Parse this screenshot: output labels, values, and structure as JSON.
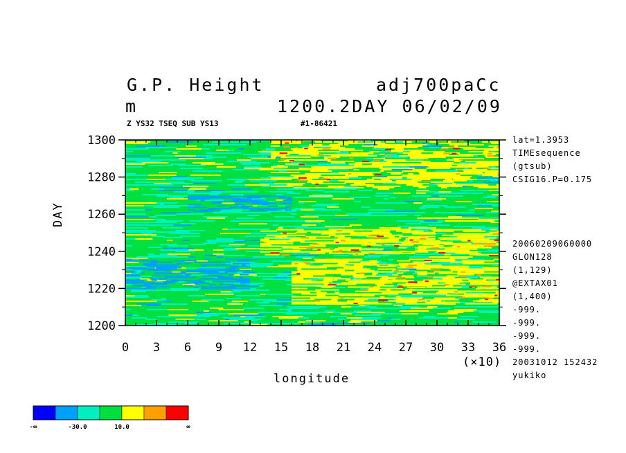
{
  "header": {
    "title_left": "G.P. Height",
    "title_right": "adj700paCc",
    "unit": "m",
    "subtitle_right": "1200.2DAY 06/02/09",
    "info_left": "Z YS32 TSEQ SUB YS13",
    "info_right": "#1-86421"
  },
  "side_info": {
    "top": [
      "lat=1.3953",
      "TIMEsequence",
      "(gtsub)",
      "CSIG16.P=0.175"
    ],
    "bottom": [
      "20060209060000",
      "GLON128",
      "(1,129)",
      "@EXTAX01",
      "(1,400)",
      "-999.",
      "-999.",
      "-999.",
      "-999.",
      "20031012 152432",
      "yukiko"
    ]
  },
  "colors": {
    "levels": [
      "#0000ff",
      "#00a0ff",
      "#00f0c0",
      "#00e040",
      "#ffff00",
      "#ffa000",
      "#ff0000"
    ],
    "dominant": "#00e040"
  },
  "colorbar": {
    "labels": [
      "-∞",
      "-30.0",
      "10.0",
      "∞"
    ]
  },
  "chart_data": {
    "type": "heatmap",
    "xlabel": "longitude",
    "ylabel": "DAY",
    "x_multiplier_label": "(×10)",
    "x_ticks": [
      "0",
      "3",
      "6",
      "9",
      "12",
      "15",
      "18",
      "21",
      "24",
      "27",
      "30",
      "33",
      "36"
    ],
    "y_ticks": [
      "1200",
      "1220",
      "1240",
      "1260",
      "1280",
      "1300"
    ],
    "xlim": [
      0,
      36
    ],
    "ylim": [
      1200,
      1300
    ],
    "x_tick_values": [
      0,
      3,
      6,
      9,
      12,
      15,
      18,
      21,
      24,
      27,
      30,
      33,
      36
    ],
    "y_tick_values": [
      1200,
      1220,
      1240,
      1260,
      1280,
      1300
    ],
    "features": [
      {
        "color": "#ffff00",
        "x_range": [
          16,
          36
        ],
        "y_range": [
          1212,
          1236
        ]
      },
      {
        "color": "#ffff00",
        "x_range": [
          13,
          36
        ],
        "y_range": [
          1238,
          1252
        ]
      },
      {
        "color": "#ffff00",
        "x_range": [
          14,
          36
        ],
        "y_range": [
          1274,
          1300
        ]
      },
      {
        "color": "#00a0ff",
        "x_range": [
          6,
          16
        ],
        "y_range": [
          1262,
          1270
        ]
      },
      {
        "color": "#00a0ff",
        "x_range": [
          0,
          12
        ],
        "y_range": [
          1220,
          1236
        ]
      }
    ]
  }
}
